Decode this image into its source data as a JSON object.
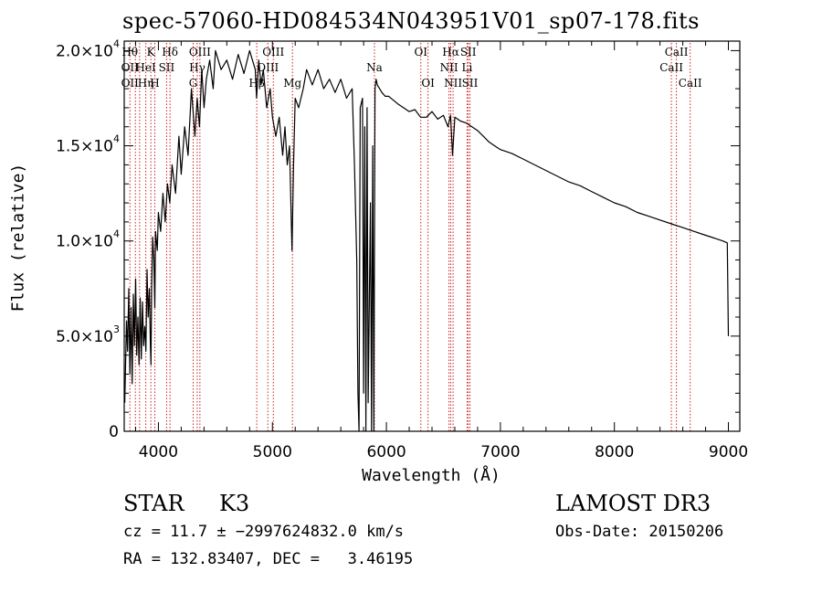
{
  "chart_data": {
    "type": "line",
    "title": "spec-57060-HD084534N043951V01_sp07-178.fits",
    "xlabel": "Wavelength (Å)",
    "ylabel": "Flux (relative)",
    "xlim": [
      3700,
      9100
    ],
    "ylim": [
      0,
      20500
    ],
    "xticks": [
      4000,
      5000,
      6000,
      7000,
      8000,
      9000
    ],
    "yticks": [
      {
        "value": 0,
        "label": "0"
      },
      {
        "value": 5000,
        "label": "5.0×10",
        "exp": "3"
      },
      {
        "value": 10000,
        "label": "1.0×10",
        "exp": "4"
      },
      {
        "value": 15000,
        "label": "1.5×10",
        "exp": "4"
      },
      {
        "value": 20000,
        "label": "2.0×10",
        "exp": "4"
      }
    ],
    "grid": false,
    "series": [
      {
        "color": "#000000",
        "x": [
          3705,
          3720,
          3730,
          3740,
          3750,
          3760,
          3770,
          3780,
          3790,
          3800,
          3810,
          3820,
          3830,
          3840,
          3850,
          3860,
          3870,
          3880,
          3890,
          3900,
          3910,
          3920,
          3930,
          3935,
          3940,
          3950,
          3960,
          3968,
          3975,
          3990,
          4000,
          4020,
          4040,
          4060,
          4080,
          4100,
          4120,
          4150,
          4180,
          4200,
          4230,
          4260,
          4290,
          4320,
          4340,
          4360,
          4380,
          4400,
          4420,
          4450,
          4480,
          4500,
          4550,
          4600,
          4650,
          4700,
          4750,
          4800,
          4850,
          4861,
          4880,
          4900,
          4920,
          4950,
          4980,
          5000,
          5030,
          5060,
          5090,
          5110,
          5130,
          5150,
          5172,
          5185,
          5200,
          5230,
          5270,
          5300,
          5350,
          5400,
          5450,
          5500,
          5550,
          5600,
          5650,
          5700,
          5720,
          5740,
          5750,
          5760,
          5770,
          5790,
          5800,
          5810,
          5820,
          5830,
          5840,
          5860,
          5870,
          5880,
          5890,
          5900,
          5910,
          5920,
          5940,
          5960,
          5990,
          6020,
          6060,
          6100,
          6150,
          6200,
          6250,
          6300,
          6350,
          6400,
          6450,
          6500,
          6540,
          6563,
          6580,
          6600,
          6650,
          6700,
          6750,
          6800,
          6850,
          6900,
          6950,
          7000,
          7100,
          7200,
          7300,
          7400,
          7500,
          7600,
          7700,
          7800,
          7900,
          8000,
          8100,
          8200,
          8300,
          8400,
          8500,
          8600,
          8700,
          8800,
          8850,
          8900,
          8950,
          8990,
          9000
        ],
        "y": [
          1500,
          5800,
          4200,
          7500,
          3000,
          6500,
          2500,
          7200,
          4500,
          8000,
          4000,
          6000,
          3500,
          7000,
          3800,
          6800,
          4500,
          5500,
          4200,
          8500,
          6000,
          7500,
          4500,
          3500,
          7500,
          10200,
          9000,
          6500,
          10500,
          9500,
          11500,
          10500,
          12500,
          11000,
          13000,
          12000,
          14000,
          12500,
          15500,
          13500,
          16000,
          14500,
          18000,
          15500,
          17500,
          16000,
          19000,
          17000,
          18500,
          19500,
          18000,
          20000,
          19000,
          19500,
          18500,
          19800,
          18800,
          20000,
          19000,
          17500,
          19500,
          18200,
          19000,
          17000,
          18000,
          16500,
          15500,
          16500,
          14500,
          16000,
          14000,
          15000,
          9500,
          14000,
          17500,
          17000,
          18000,
          19000,
          18200,
          19000,
          18000,
          18500,
          17800,
          18500,
          17500,
          18000,
          14000,
          9000,
          2000,
          0,
          17000,
          17500,
          2000,
          16000,
          0,
          17000,
          1500,
          12000,
          0,
          15000,
          0,
          18000,
          18500,
          18200,
          18000,
          17800,
          17600,
          17600,
          17400,
          17200,
          17000,
          16800,
          16900,
          16500,
          16500,
          16800,
          16400,
          16600,
          16000,
          16600,
          14500,
          16500,
          16300,
          16200,
          16000,
          15800,
          15500,
          15200,
          15000,
          14800,
          14600,
          14300,
          14000,
          13700,
          13400,
          13100,
          12900,
          12600,
          12300,
          12000,
          11800,
          11500,
          11300,
          11100,
          10900,
          10700,
          10500,
          10300,
          10200,
          10100,
          10000,
          9900,
          5000
        ]
      }
    ],
    "lines": [
      {
        "x": 3750,
        "labels": [
          {
            "row": 0,
            "text": "Hθ"
          },
          {
            "row": 1,
            "text": "OII"
          },
          {
            "row": 2,
            "text": "OII"
          }
        ]
      },
      {
        "x": 3798,
        "labels": []
      },
      {
        "x": 3835,
        "labels": []
      },
      {
        "x": 3889,
        "labels": [
          {
            "row": 1,
            "text": "HeI"
          },
          {
            "row": 2,
            "text": "Hη"
          }
        ]
      },
      {
        "x": 3933.7,
        "labels": [
          {
            "row": 0,
            "text": "K"
          }
        ]
      },
      {
        "x": 3968.5,
        "labels": [
          {
            "row": 2,
            "text": "H"
          }
        ]
      },
      {
        "x": 4072,
        "labels": [
          {
            "row": 1,
            "text": "SII"
          }
        ]
      },
      {
        "x": 4101.7,
        "labels": [
          {
            "row": 0,
            "text": "Hδ"
          }
        ]
      },
      {
        "x": 4305,
        "labels": [
          {
            "row": 2,
            "text": "G"
          }
        ]
      },
      {
        "x": 4340.5,
        "labels": [
          {
            "row": 1,
            "text": "Hγ"
          }
        ]
      },
      {
        "x": 4364,
        "labels": [
          {
            "row": 0,
            "text": "OIII"
          }
        ]
      },
      {
        "x": 4862.7,
        "labels": [
          {
            "row": 2,
            "text": "Hβ"
          }
        ]
      },
      {
        "x": 4960,
        "labels": [
          {
            "row": 1,
            "text": "OIII"
          }
        ]
      },
      {
        "x": 5008,
        "labels": [
          {
            "row": 0,
            "text": "OIII"
          }
        ]
      },
      {
        "x": 5176,
        "labels": [
          {
            "row": 2,
            "text": "Mg"
          }
        ]
      },
      {
        "x": 5895,
        "labels": [
          {
            "row": 1,
            "text": "Na"
          }
        ]
      },
      {
        "x": 6302,
        "labels": [
          {
            "row": 0,
            "text": "OI"
          }
        ]
      },
      {
        "x": 6365,
        "labels": [
          {
            "row": 2,
            "text": "OI"
          }
        ]
      },
      {
        "x": 6549,
        "labels": [
          {
            "row": 1,
            "text": "NII"
          }
        ]
      },
      {
        "x": 6564.6,
        "labels": [
          {
            "row": 0,
            "text": "Hα"
          }
        ]
      },
      {
        "x": 6585,
        "labels": [
          {
            "row": 2,
            "text": "NII"
          }
        ]
      },
      {
        "x": 6708,
        "labels": [
          {
            "row": 1,
            "text": "Li"
          }
        ]
      },
      {
        "x": 6718,
        "labels": [
          {
            "row": 0,
            "text": "SII"
          }
        ]
      },
      {
        "x": 6733,
        "labels": [
          {
            "row": 2,
            "text": "SII"
          }
        ]
      },
      {
        "x": 8500,
        "labels": [
          {
            "row": 1,
            "text": "CaII"
          }
        ]
      },
      {
        "x": 8544,
        "labels": [
          {
            "row": 0,
            "text": "CaII"
          }
        ]
      },
      {
        "x": 8665,
        "labels": [
          {
            "row": 2,
            "text": "CaII"
          }
        ]
      }
    ],
    "line_color": "#cc2222",
    "info": {
      "object_class": "STAR",
      "subclass": "K3",
      "survey": "LAMOST DR3",
      "cz_line": "cz = 11.7 ± −2997624832.0 km/s",
      "obs_date_line": "Obs-Date: 20150206",
      "radec_line": "RA = 132.83407, DEC =   3.46195"
    }
  }
}
